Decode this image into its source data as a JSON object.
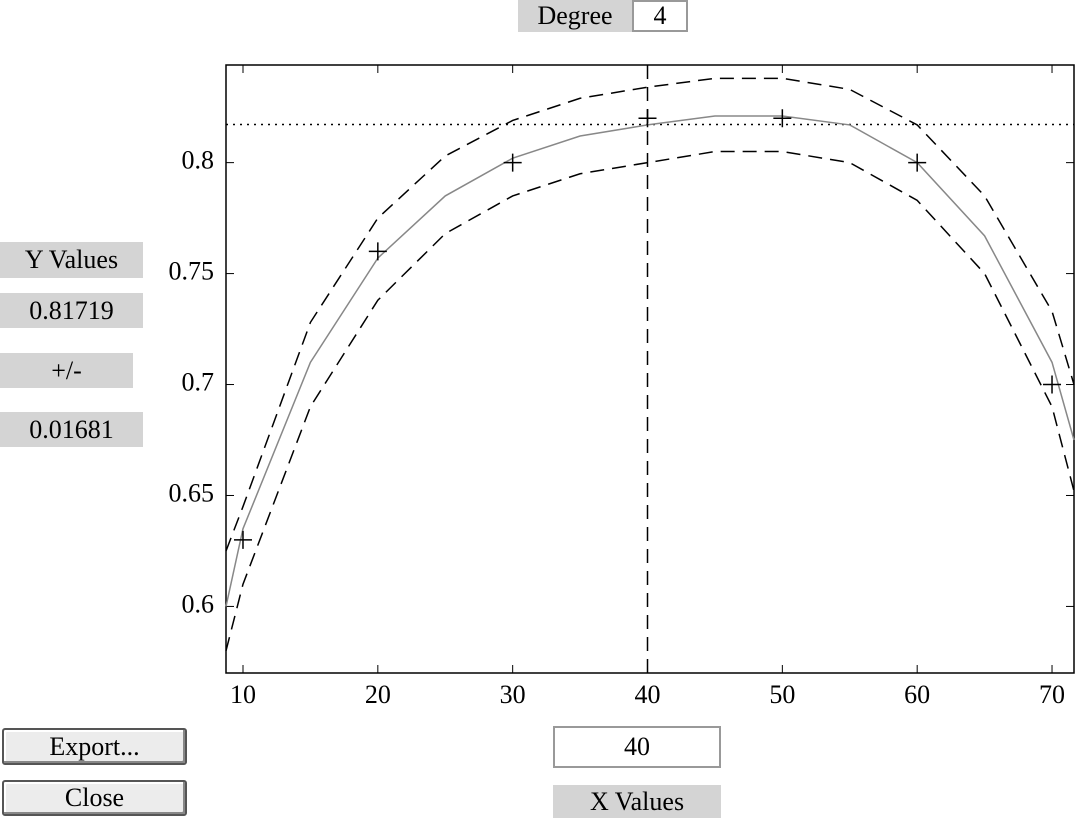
{
  "chart_data": {
    "type": "line",
    "xlim": [
      8.74,
      71.63
    ],
    "ylim": [
      0.57,
      0.844
    ],
    "xticks": [
      10,
      20,
      30,
      40,
      50,
      60,
      70
    ],
    "yticks": [
      0.6,
      0.65,
      0.7,
      0.75,
      0.8
    ],
    "points": {
      "x": [
        10,
        20,
        30,
        40,
        50,
        60,
        70
      ],
      "y": [
        0.63,
        0.76,
        0.8,
        0.82,
        0.82,
        0.8,
        0.7
      ],
      "color": "#000000"
    },
    "x": [
      8.74,
      10,
      15,
      20,
      25,
      30,
      35,
      40,
      45,
      50,
      55,
      60,
      65,
      70,
      71.63
    ],
    "series": [
      {
        "color": "#888888",
        "dash": "none",
        "values": [
          0.6,
          0.635,
          0.71,
          0.757,
          0.785,
          0.802,
          0.812,
          0.817,
          0.821,
          0.821,
          0.817,
          0.8,
          0.767,
          0.71,
          0.675
        ]
      },
      {
        "color": "#000000",
        "dash": "14 8",
        "values": [
          0.625,
          0.645,
          0.728,
          0.775,
          0.803,
          0.819,
          0.829,
          0.834,
          0.838,
          0.838,
          0.833,
          0.817,
          0.785,
          0.733,
          0.7
        ]
      },
      {
        "color": "#000000",
        "dash": "14 8",
        "values": [
          0.58,
          0.61,
          0.69,
          0.738,
          0.768,
          0.785,
          0.795,
          0.8,
          0.805,
          0.805,
          0.8,
          0.783,
          0.75,
          0.69,
          0.652
        ]
      }
    ],
    "x_current": 40,
    "y_current": 0.81719,
    "y_halfwidth": 0.01681
  },
  "controls": {
    "degree_label": "Degree",
    "degree": "4",
    "y_label": "Y Values",
    "pm_label": "+/-",
    "x_label": "X Values",
    "export_button": "Export...",
    "close_button": "Close"
  }
}
